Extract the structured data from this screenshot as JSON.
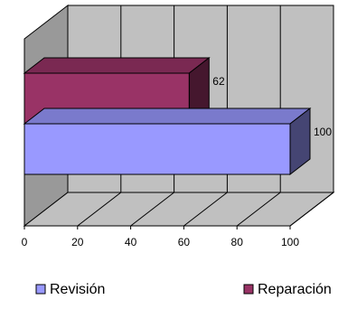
{
  "chart_data": {
    "type": "bar",
    "orientation": "horizontal",
    "three_d": true,
    "xlim": [
      0,
      100
    ],
    "x_ticks": [
      "0",
      "20",
      "40",
      "60",
      "80",
      "100"
    ],
    "grid": true,
    "legend_position": "bottom",
    "series": [
      {
        "name": "Revisión",
        "value": 100,
        "label": "100",
        "color": "#9999FF"
      },
      {
        "name": "Reparación",
        "value": 62,
        "label": "62",
        "color": "#993366"
      }
    ]
  }
}
